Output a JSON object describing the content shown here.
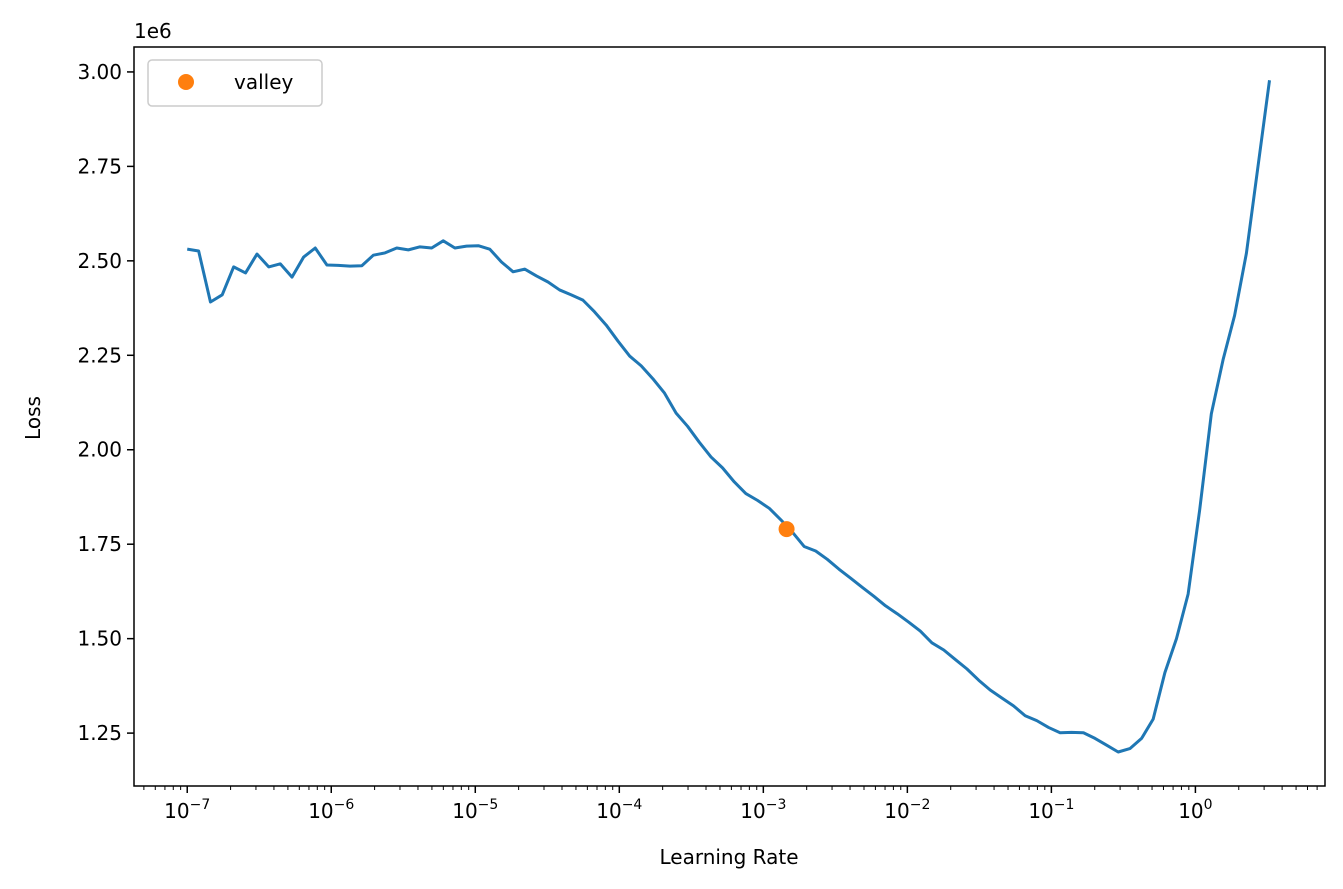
{
  "chart_data": {
    "type": "line",
    "xlabel": "Learning Rate",
    "ylabel": "Loss",
    "y_offset_label": "1e6",
    "xscale": "log",
    "xlim": [
      4.27e-08,
      7.94
    ],
    "ylim": [
      1110000,
      3066000
    ],
    "xticks": [
      {
        "value": 1e-07,
        "label": "10",
        "exponent": "−7"
      },
      {
        "value": 1e-06,
        "label": "10",
        "exponent": "−6"
      },
      {
        "value": 1e-05,
        "label": "10",
        "exponent": "−5"
      },
      {
        "value": 0.0001,
        "label": "10",
        "exponent": "−4"
      },
      {
        "value": 0.001,
        "label": "10",
        "exponent": "−3"
      },
      {
        "value": 0.01,
        "label": "10",
        "exponent": "−2"
      },
      {
        "value": 0.1,
        "label": "10",
        "exponent": "−1"
      },
      {
        "value": 1,
        "label": "10",
        "exponent": "0"
      }
    ],
    "xticks_minor": [
      5e-08,
      6e-08,
      7e-08,
      8e-08,
      9e-08,
      2e-07,
      3e-07,
      4e-07,
      5e-07,
      6e-07,
      7e-07,
      8e-07,
      9e-07,
      2e-06,
      3e-06,
      4e-06,
      5e-06,
      6e-06,
      7e-06,
      8e-06,
      9e-06,
      2e-05,
      3e-05,
      4e-05,
      5e-05,
      6e-05,
      7e-05,
      8e-05,
      9e-05,
      0.0002,
      0.0003,
      0.0004,
      0.0005,
      0.0006,
      0.0007,
      0.0008,
      0.0009,
      0.002,
      0.003,
      0.004,
      0.005,
      0.006,
      0.007,
      0.008,
      0.009,
      0.02,
      0.03,
      0.04,
      0.05,
      0.06,
      0.07,
      0.08,
      0.09,
      0.2,
      0.3,
      0.4,
      0.5,
      0.6,
      0.7,
      0.8,
      0.9,
      2,
      3,
      4,
      5,
      6,
      7
    ],
    "yticks": [
      {
        "value": 1250000,
        "label": "1.25"
      },
      {
        "value": 1500000,
        "label": "1.50"
      },
      {
        "value": 1750000,
        "label": "1.75"
      },
      {
        "value": 2000000,
        "label": "2.00"
      },
      {
        "value": 2250000,
        "label": "2.25"
      },
      {
        "value": 2500000,
        "label": "2.50"
      },
      {
        "value": 2750000,
        "label": "2.75"
      },
      {
        "value": 3000000,
        "label": "3.00"
      }
    ],
    "legend_position": "upper-left",
    "series": [
      {
        "type": "line",
        "color": "#1f77b4",
        "x": [
          1e-07,
          1.2e-07,
          1.45e-07,
          1.75e-07,
          2.1e-07,
          2.54e-07,
          3.05e-07,
          3.68e-07,
          4.43e-07,
          5.34e-07,
          6.43e-07,
          7.74e-07,
          9.33e-07,
          1.12e-06,
          1.35e-06,
          1.63e-06,
          1.96e-06,
          2.36e-06,
          2.85e-06,
          3.43e-06,
          4.13e-06,
          4.98e-06,
          5.99e-06,
          7.22e-06,
          8.7e-06,
          1.05e-05,
          1.26e-05,
          1.52e-05,
          1.83e-05,
          2.21e-05,
          2.66e-05,
          3.2e-05,
          3.85e-05,
          4.64e-05,
          5.59e-05,
          6.73e-05,
          8.11e-05,
          9.77e-05,
          0.000118,
          0.000142,
          0.000171,
          0.000206,
          0.000248,
          0.000298,
          0.000359,
          0.000433,
          0.000521,
          0.000628,
          0.000756,
          0.000911,
          0.0011,
          0.00132,
          0.00159,
          0.00192,
          0.00231,
          0.00278,
          0.00335,
          0.00404,
          0.00486,
          0.00586,
          0.00705,
          0.0085,
          0.0102,
          0.0123,
          0.0148,
          0.0179,
          0.0215,
          0.0259,
          0.0313,
          0.0376,
          0.0453,
          0.0546,
          0.0658,
          0.0792,
          0.0955,
          0.115,
          0.138,
          0.167,
          0.201,
          0.242,
          0.291,
          0.351,
          0.423,
          0.509,
          0.614,
          0.739,
          0.89,
          1.07,
          1.29,
          1.56,
          1.87,
          2.26,
          2.72,
          3.27
        ],
        "values": [
          2531000,
          2526000,
          2391000,
          2410000,
          2484000,
          2468000,
          2518000,
          2484000,
          2492000,
          2457000,
          2510000,
          2534000,
          2489000,
          2488000,
          2486000,
          2487000,
          2515000,
          2521000,
          2534000,
          2529000,
          2537000,
          2534000,
          2553000,
          2534000,
          2539000,
          2540000,
          2531000,
          2497000,
          2471000,
          2478000,
          2460000,
          2444000,
          2423000,
          2410000,
          2396000,
          2365000,
          2330000,
          2288000,
          2248000,
          2222000,
          2188000,
          2150000,
          2097000,
          2062000,
          2020000,
          1981000,
          1952000,
          1915000,
          1884000,
          1866000,
          1845000,
          1815000,
          1782000,
          1744000,
          1732000,
          1710000,
          1684000,
          1660000,
          1636000,
          1612000,
          1587000,
          1566000,
          1544000,
          1520000,
          1489000,
          1470000,
          1445000,
          1420000,
          1390000,
          1364000,
          1343000,
          1322000,
          1296000,
          1283000,
          1265000,
          1251000,
          1252000,
          1251000,
          1236000,
          1218000,
          1200000,
          1209000,
          1236000,
          1287000,
          1410000,
          1500000,
          1618000,
          1840000,
          2095000,
          2240000,
          2355000,
          2520000,
          2750000,
          2978000
        ]
      },
      {
        "type": "scatter",
        "name": "valley",
        "color": "#ff7f0e",
        "x": [
          0.00145
        ],
        "values": [
          1790000
        ]
      }
    ]
  }
}
